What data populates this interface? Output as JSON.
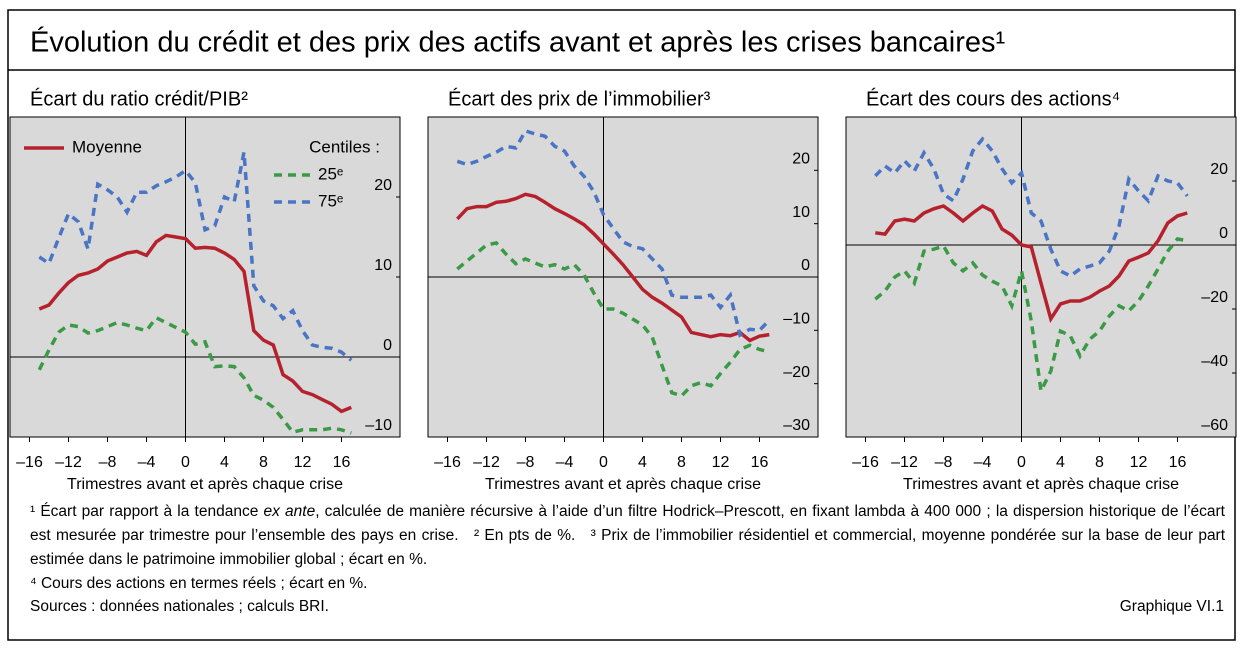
{
  "title": "Évolution du crédit et des prix des actifs avant et après les crises bancaires¹",
  "chart_data": [
    {
      "type": "line",
      "title": "Écart du ratio crédit/PIB²",
      "xlabel": "Trimestres avant et après chaque crise",
      "legend_title": "Centiles :",
      "x": [
        -15,
        -14,
        -13,
        -12,
        -11,
        -10,
        -9,
        -8,
        -7,
        -6,
        -5,
        -4,
        -3,
        -2,
        -1,
        0,
        1,
        2,
        3,
        4,
        5,
        6,
        7,
        8,
        9,
        10,
        11,
        12,
        13,
        14,
        15,
        16,
        17
      ],
      "xlim": [
        -18,
        22
      ],
      "ylim": [
        -10,
        30
      ],
      "xticks": [
        {
          "value": -16,
          "label": "–16"
        },
        {
          "value": -12,
          "label": "–12"
        },
        {
          "value": -8,
          "label": "–8"
        },
        {
          "value": -4,
          "label": "–4"
        },
        0,
        4,
        8,
        12,
        16
      ],
      "yticks": [
        {
          "value": -10,
          "label": "–10"
        },
        0,
        10,
        20
      ],
      "series": [
        {
          "name": "Moyenne",
          "color": "#b5222e",
          "linestyle": "solid",
          "values": [
            6.0,
            6.5,
            8.0,
            9.3,
            10.2,
            10.5,
            11.0,
            12.0,
            12.5,
            13.0,
            13.2,
            12.7,
            14.4,
            15.2,
            15.0,
            14.8,
            13.6,
            13.7,
            13.6,
            13.0,
            12.2,
            10.7,
            3.3,
            2.1,
            1.5,
            -2.2,
            -3.0,
            -4.3,
            -4.7,
            -5.3,
            -5.9,
            -6.8,
            -6.3
          ]
        },
        {
          "name": "25ᵉ",
          "color": "#3a9a46",
          "linestyle": "dashed",
          "values": [
            -1.6,
            0.9,
            3.1,
            4.0,
            3.8,
            3.0,
            3.3,
            3.8,
            4.3,
            4.0,
            3.6,
            3.3,
            4.9,
            4.3,
            3.7,
            3.1,
            1.6,
            1.9,
            -1.2,
            -1.1,
            -1.2,
            -2.6,
            -4.8,
            -5.4,
            -6.3,
            -7.8,
            -9.4,
            -9.1,
            -9.1,
            -9.1,
            -8.9,
            -9.1,
            -9.5
          ]
        },
        {
          "name": "75ᵉ",
          "color": "#4a74c4",
          "linestyle": "dashed",
          "values": [
            12.5,
            11.7,
            14.9,
            17.9,
            16.9,
            13.5,
            21.6,
            20.9,
            20.0,
            18.1,
            20.6,
            20.6,
            21.4,
            21.9,
            22.5,
            23.3,
            21.8,
            15.9,
            16.4,
            20.0,
            19.4,
            25.6,
            8.9,
            7.0,
            6.4,
            4.8,
            5.8,
            3.3,
            1.5,
            1.2,
            1.1,
            0.6,
            -0.4
          ]
        }
      ]
    },
    {
      "type": "line",
      "title": "Écart des prix de l’immobilier³",
      "xlabel": "Trimestres avant et après chaque crise",
      "x": [
        -15,
        -14,
        -13,
        -12,
        -11,
        -10,
        -9,
        -8,
        -7,
        -6,
        -5,
        -4,
        -3,
        -2,
        -1,
        0,
        1,
        2,
        3,
        4,
        5,
        6,
        7,
        8,
        9,
        10,
        11,
        12,
        13,
        14,
        15,
        16,
        17
      ],
      "xlim": [
        -18,
        22
      ],
      "ylim": [
        -30,
        30
      ],
      "xticks": [
        {
          "value": -16,
          "label": "–16"
        },
        {
          "value": -12,
          "label": "–12"
        },
        {
          "value": -8,
          "label": "–8"
        },
        {
          "value": -4,
          "label": "–4"
        },
        0,
        4,
        8,
        12,
        16
      ],
      "yticks": [
        {
          "value": -30,
          "label": "–30"
        },
        {
          "value": -20,
          "label": "–20"
        },
        {
          "value": -10,
          "label": "–10"
        },
        0,
        10,
        20
      ],
      "series": [
        {
          "color": "#b5222e",
          "linestyle": "solid",
          "values": [
            10.9,
            12.8,
            13.2,
            13.2,
            14.0,
            14.2,
            14.7,
            15.5,
            15.1,
            14.0,
            12.8,
            11.9,
            10.9,
            9.8,
            8.1,
            6.2,
            4.3,
            2.3,
            0.0,
            -2.3,
            -3.8,
            -4.9,
            -6.2,
            -7.5,
            -10.4,
            -10.8,
            -11.2,
            -10.8,
            -11.0,
            -10.4,
            -11.9,
            -11.1,
            -10.8
          ]
        },
        {
          "color": "#3a9a46",
          "linestyle": "dashed",
          "values": [
            1.5,
            3.0,
            4.5,
            6.0,
            6.4,
            4.3,
            2.5,
            3.4,
            2.6,
            1.9,
            2.3,
            1.5,
            2.3,
            0.4,
            -3.0,
            -6.0,
            -6.0,
            -6.8,
            -7.9,
            -9.0,
            -11.3,
            -16.6,
            -21.7,
            -22.3,
            -20.4,
            -19.8,
            -20.4,
            -18.1,
            -16.0,
            -13.6,
            -12.8,
            -13.6,
            -14.0
          ]
        },
        {
          "color": "#4a74c4",
          "linestyle": "dashed",
          "values": [
            21.7,
            21.1,
            21.7,
            22.6,
            23.4,
            24.5,
            24.2,
            27.4,
            26.8,
            26.4,
            24.5,
            23.6,
            20.8,
            18.9,
            16.0,
            11.7,
            9.1,
            6.6,
            5.7,
            5.3,
            3.4,
            1.5,
            -3.4,
            -3.8,
            -3.8,
            -3.8,
            -3.4,
            -5.7,
            -3.4,
            -10.9,
            -9.8,
            -10.0,
            -8.1
          ]
        }
      ]
    },
    {
      "type": "line",
      "title": "Écart des cours des actions⁴",
      "xlabel": "Trimestres avant et après chaque crise",
      "x": [
        -15,
        -14,
        -13,
        -12,
        -11,
        -10,
        -9,
        -8,
        -7,
        -6,
        -5,
        -4,
        -3,
        -2,
        -1,
        0,
        1,
        2,
        3,
        4,
        5,
        6,
        7,
        8,
        9,
        10,
        11,
        12,
        13,
        14,
        15,
        16,
        17
      ],
      "xlim": [
        -18,
        22
      ],
      "ylim": [
        -60,
        40
      ],
      "xticks": [
        {
          "value": -16,
          "label": "–16"
        },
        {
          "value": -12,
          "label": "–12"
        },
        {
          "value": -8,
          "label": "–8"
        },
        {
          "value": -4,
          "label": "–4"
        },
        0,
        4,
        8,
        12,
        16
      ],
      "yticks": [
        {
          "value": -60,
          "label": "–60"
        },
        {
          "value": -40,
          "label": "–40"
        },
        {
          "value": -20,
          "label": "–20"
        },
        0,
        20
      ],
      "series": [
        {
          "color": "#b5222e",
          "linestyle": "solid",
          "values": [
            3.8,
            3.4,
            7.5,
            8.1,
            7.5,
            10.0,
            11.3,
            12.2,
            10.0,
            7.5,
            10.0,
            12.2,
            10.6,
            5.0,
            3.1,
            0.0,
            -0.6,
            -11.9,
            -23.1,
            -18.4,
            -17.5,
            -17.5,
            -16.3,
            -14.4,
            -12.8,
            -9.7,
            -5.0,
            -3.8,
            -2.5,
            1.3,
            6.9,
            9.1,
            10.0
          ]
        },
        {
          "color": "#3a9a46",
          "linestyle": "dashed",
          "values": [
            -16.9,
            -14.4,
            -10.0,
            -8.1,
            -11.9,
            -1.9,
            -1.3,
            -0.3,
            -5.6,
            -8.1,
            -5.6,
            -9.4,
            -11.3,
            -12.8,
            -19.0,
            -8.1,
            -23.8,
            -45.6,
            -39.4,
            -26.9,
            -28.4,
            -34.7,
            -29.4,
            -26.9,
            -22.2,
            -19.0,
            -20.6,
            -17.5,
            -12.8,
            -7.5,
            -1.9,
            1.9,
            1.3
          ]
        },
        {
          "color": "#4a74c4",
          "linestyle": "dashed",
          "values": [
            21.6,
            24.7,
            22.5,
            26.3,
            23.1,
            28.8,
            23.8,
            15.9,
            13.8,
            20.6,
            29.4,
            33.1,
            29.4,
            23.8,
            19.4,
            22.5,
            10.0,
            7.5,
            -1.3,
            -8.1,
            -9.7,
            -7.5,
            -6.6,
            -5.6,
            -1.9,
            5.9,
            20.6,
            16.9,
            13.8,
            21.6,
            20.0,
            19.4,
            15.3
          ]
        }
      ]
    }
  ],
  "footnotes": {
    "n1a": "¹ Écart par rapport à la tendance ",
    "n1b": "ex ante",
    "n1c": ", calculée de manière récursive à l’aide d’un filtre Hodrick–Prescott, en fixant lambda à 400 000 ; la dispersion historique de l’écart est mesurée par trimestre pour l’ensemble des pays en crise.",
    "n2": "² En pts de %.",
    "n3": "³ Prix de l’immobilier résidentiel et commercial, moyenne pondérée sur la base de leur part estimée dans le patrimoine immobilier global ; écart en %.",
    "n4": "⁴ Cours des actions en termes réels ; écart en %."
  },
  "sources": "Sources : données nationales ; calculs BRI.",
  "graph_id": "Graphique VI.1"
}
